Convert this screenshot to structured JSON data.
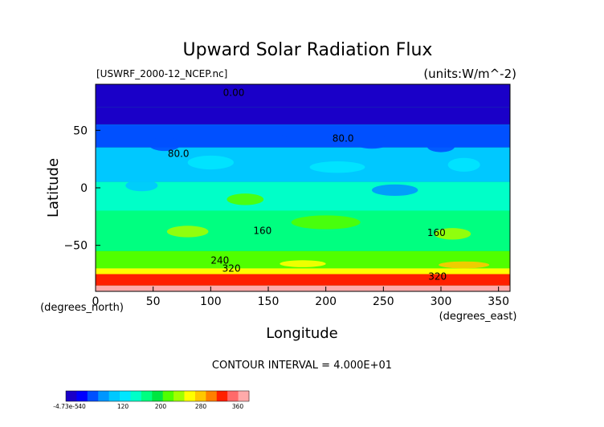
{
  "chart_data": {
    "type": "heatmap",
    "title": "Upward Solar Radiation Flux",
    "source_label": "[USWRF_2000-12_NCEP.nc]",
    "units_label": "(units:W/m^-2)",
    "xlabel": "Longitude",
    "ylabel": "Latitude",
    "x_unit_label": "(degrees_east)",
    "y_unit_label": "(degrees_north)",
    "xlim": [
      0,
      360
    ],
    "ylim": [
      -90,
      90
    ],
    "x_ticks": [
      0,
      50,
      100,
      150,
      200,
      250,
      300,
      350
    ],
    "y_ticks": [
      50,
      0,
      -50
    ],
    "contour_interval_label": "CONTOUR INTERVAL = 4.000E+01",
    "contour_labels": [
      "0.00",
      "80.0",
      "80.0",
      "160",
      "160",
      "240",
      "320",
      "320"
    ],
    "colorbar_tick_labels": [
      "-4.73e-5",
      "40",
      "120",
      "200",
      "280",
      "360"
    ],
    "colorbar_colors": [
      "#1a00c8",
      "#0000ff",
      "#0050ff",
      "#0096ff",
      "#00c8ff",
      "#00e6ff",
      "#00ffc8",
      "#00ff80",
      "#00e640",
      "#50ff00",
      "#a0ff00",
      "#ffff00",
      "#ffc800",
      "#ff8000",
      "#ff2000",
      "#ff6a6a",
      "#ffaaaa"
    ],
    "series": [
      {
        "name": "band_lat_85",
        "lat_range": [
          70,
          90
        ],
        "value": 0
      },
      {
        "name": "band_lat_63",
        "lat_range": [
          55,
          70
        ],
        "value": 20
      },
      {
        "name": "band_lat_45",
        "lat_range": [
          35,
          55
        ],
        "value": 60
      },
      {
        "name": "band_lat_20",
        "lat_range": [
          5,
          35
        ],
        "value": 90
      },
      {
        "name": "band_lat_0",
        "lat_range": [
          -20,
          5
        ],
        "value": 140
      },
      {
        "name": "band_lat_-35",
        "lat_range": [
          -55,
          -20
        ],
        "value": 170
      },
      {
        "name": "band_lat_-62",
        "lat_range": [
          -70,
          -55
        ],
        "value": 210
      },
      {
        "name": "band_lat_-72",
        "lat_range": [
          -75,
          -70
        ],
        "value": 260
      },
      {
        "name": "band_lat_-80",
        "lat_range": [
          -85,
          -75
        ],
        "value": 330
      },
      {
        "name": "band_lat_-88",
        "lat_range": [
          -90,
          -85
        ],
        "value": 360
      }
    ]
  }
}
